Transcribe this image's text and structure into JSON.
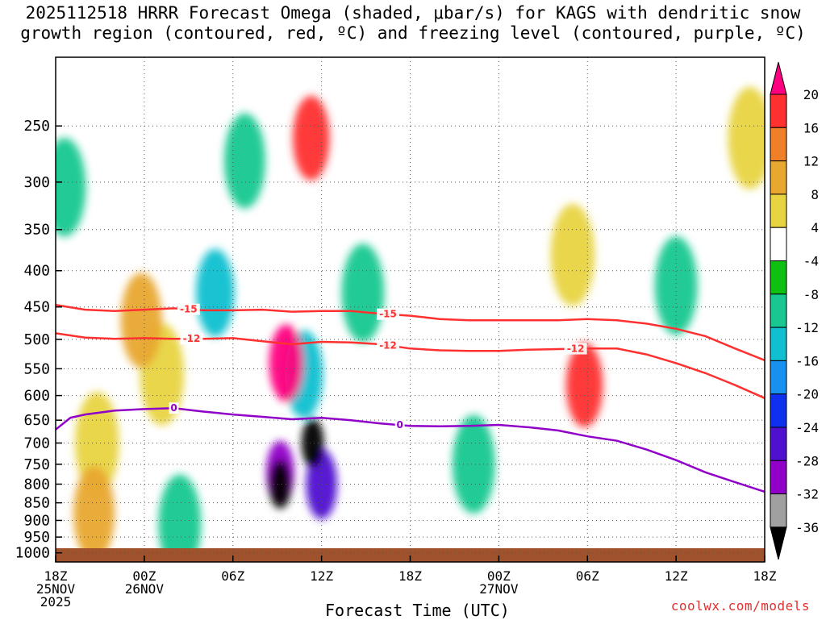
{
  "title": {
    "line1": "2025112518 HRRR Forecast Omega (shaded, μbar/s) for KAGS with dendritic snow",
    "line2": "growth region (contoured, red, ºC) and freezing level (contoured, purple, ºC)"
  },
  "credit": "coolwx.com/models",
  "chart_data": {
    "type": "heatmap",
    "title": "2025112518 HRRR Forecast Omega (shaded, μbar/s) for KAGS with dendritic snow growth region (contoured, red, ºC) and freezing level (contoured, purple, ºC)",
    "xlabel": "Forecast Time (UTC)",
    "ylabel": "",
    "x_unit": "hours since 18Z 25NOV 2025",
    "xlim": [
      0,
      48
    ],
    "ylim": [
      1030,
      200
    ],
    "y_ticks": [
      250,
      300,
      350,
      400,
      450,
      500,
      550,
      600,
      650,
      700,
      750,
      800,
      850,
      900,
      950,
      1000
    ],
    "x_ticks": [
      {
        "x": 0,
        "label": "18Z",
        "label2": "25NOV",
        "label3": "2025"
      },
      {
        "x": 6,
        "label": "00Z",
        "label2": "26NOV",
        "label3": ""
      },
      {
        "x": 12,
        "label": "06Z",
        "label2": "",
        "label3": ""
      },
      {
        "x": 18,
        "label": "12Z",
        "label2": "",
        "label3": ""
      },
      {
        "x": 24,
        "label": "18Z",
        "label2": "",
        "label3": ""
      },
      {
        "x": 30,
        "label": "00Z",
        "label2": "27NOV",
        "label3": ""
      },
      {
        "x": 36,
        "label": "06Z",
        "label2": "",
        "label3": ""
      },
      {
        "x": 42,
        "label": "12Z",
        "label2": "",
        "label3": ""
      },
      {
        "x": 48,
        "label": "18Z",
        "label2": "",
        "label3": ""
      }
    ],
    "colorbar": {
      "labels": [
        "20",
        "16",
        "12",
        "8",
        "4",
        "-4",
        "-8",
        "-12",
        "-16",
        "-20",
        "-24",
        "-28",
        "-32",
        "-36"
      ],
      "colors": [
        "#ff0080",
        "#ff3030",
        "#f08028",
        "#e8a830",
        "#e8d440",
        "#ffffff",
        "#10c010",
        "#18c890",
        "#10c0d0",
        "#1890f0",
        "#1030f0",
        "#5010d0",
        "#9000c8",
        "#a0a0a0",
        "#000000"
      ]
    },
    "omega_features": [
      {
        "x": 0.6,
        "p": 305,
        "val": -8
      },
      {
        "x": 2.8,
        "p": 700,
        "val": 6
      },
      {
        "x": 2.6,
        "p": 880,
        "val": 10
      },
      {
        "x": 5.8,
        "p": 470,
        "val": 10
      },
      {
        "x": 7.2,
        "p": 560,
        "val": 6
      },
      {
        "x": 8.4,
        "p": 910,
        "val": -8
      },
      {
        "x": 10.8,
        "p": 430,
        "val": -14
      },
      {
        "x": 12.8,
        "p": 280,
        "val": -10
      },
      {
        "x": 15.2,
        "p": 770,
        "val": -28
      },
      {
        "x": 15.2,
        "p": 800,
        "val": -36
      },
      {
        "x": 15.6,
        "p": 540,
        "val": 20
      },
      {
        "x": 16.8,
        "p": 560,
        "val": -14
      },
      {
        "x": 17.3,
        "p": 260,
        "val": 16
      },
      {
        "x": 17.4,
        "p": 700,
        "val": -36
      },
      {
        "x": 18.0,
        "p": 800,
        "val": -24
      },
      {
        "x": 20.8,
        "p": 430,
        "val": -8
      },
      {
        "x": 28.3,
        "p": 750,
        "val": -8
      },
      {
        "x": 35.8,
        "p": 580,
        "val": 16
      },
      {
        "x": 35.0,
        "p": 380,
        "val": 6
      },
      {
        "x": 42.0,
        "p": 420,
        "val": -8
      },
      {
        "x": 47.0,
        "p": 260,
        "val": 6
      }
    ],
    "series": [
      {
        "name": "-15",
        "color": "#ff3030",
        "x": [
          0,
          2,
          4,
          6,
          8,
          10,
          12,
          14,
          16,
          18,
          20,
          22,
          24,
          26,
          28,
          30,
          32,
          34,
          36,
          38,
          40,
          42,
          44,
          46,
          48
        ],
        "values": [
          447,
          454,
          456,
          454,
          452,
          455,
          455,
          454,
          457,
          456,
          456,
          460,
          463,
          468,
          470,
          470,
          470,
          470,
          468,
          470,
          475,
          483,
          495,
          515,
          535
        ],
        "label_at": [
          {
            "x": 9,
            "text": "-15"
          },
          {
            "x": 22.5,
            "text": "-15"
          }
        ]
      },
      {
        "name": "-12",
        "color": "#ff3030",
        "x": [
          0,
          2,
          4,
          6,
          8,
          10,
          12,
          14,
          16,
          18,
          20,
          22,
          24,
          26,
          28,
          30,
          32,
          34,
          36,
          38,
          40,
          42,
          44,
          46,
          48
        ],
        "values": [
          490,
          497,
          499,
          498,
          499,
          499,
          498,
          503,
          508,
          504,
          505,
          508,
          515,
          518,
          519,
          519,
          517,
          516,
          515,
          515,
          525,
          540,
          558,
          580,
          605
        ],
        "label_at": [
          {
            "x": 9.2,
            "text": "-12"
          },
          {
            "x": 22.5,
            "text": "-12"
          },
          {
            "x": 35.2,
            "text": "-12"
          }
        ]
      },
      {
        "name": "0",
        "color": "#9000c8",
        "x": [
          0,
          1,
          2,
          4,
          6,
          8,
          10,
          12,
          14,
          16,
          18,
          20,
          22,
          24,
          26,
          28,
          30,
          32,
          34,
          36,
          38,
          40,
          42,
          44,
          46,
          48
        ],
        "values": [
          670,
          645,
          638,
          630,
          627,
          625,
          632,
          638,
          643,
          648,
          645,
          650,
          657,
          662,
          663,
          662,
          660,
          665,
          672,
          685,
          695,
          715,
          740,
          770,
          795,
          820
        ],
        "label_at": [
          {
            "x": 8,
            "text": "0"
          },
          {
            "x": 23.3,
            "text": "0"
          }
        ]
      }
    ]
  }
}
